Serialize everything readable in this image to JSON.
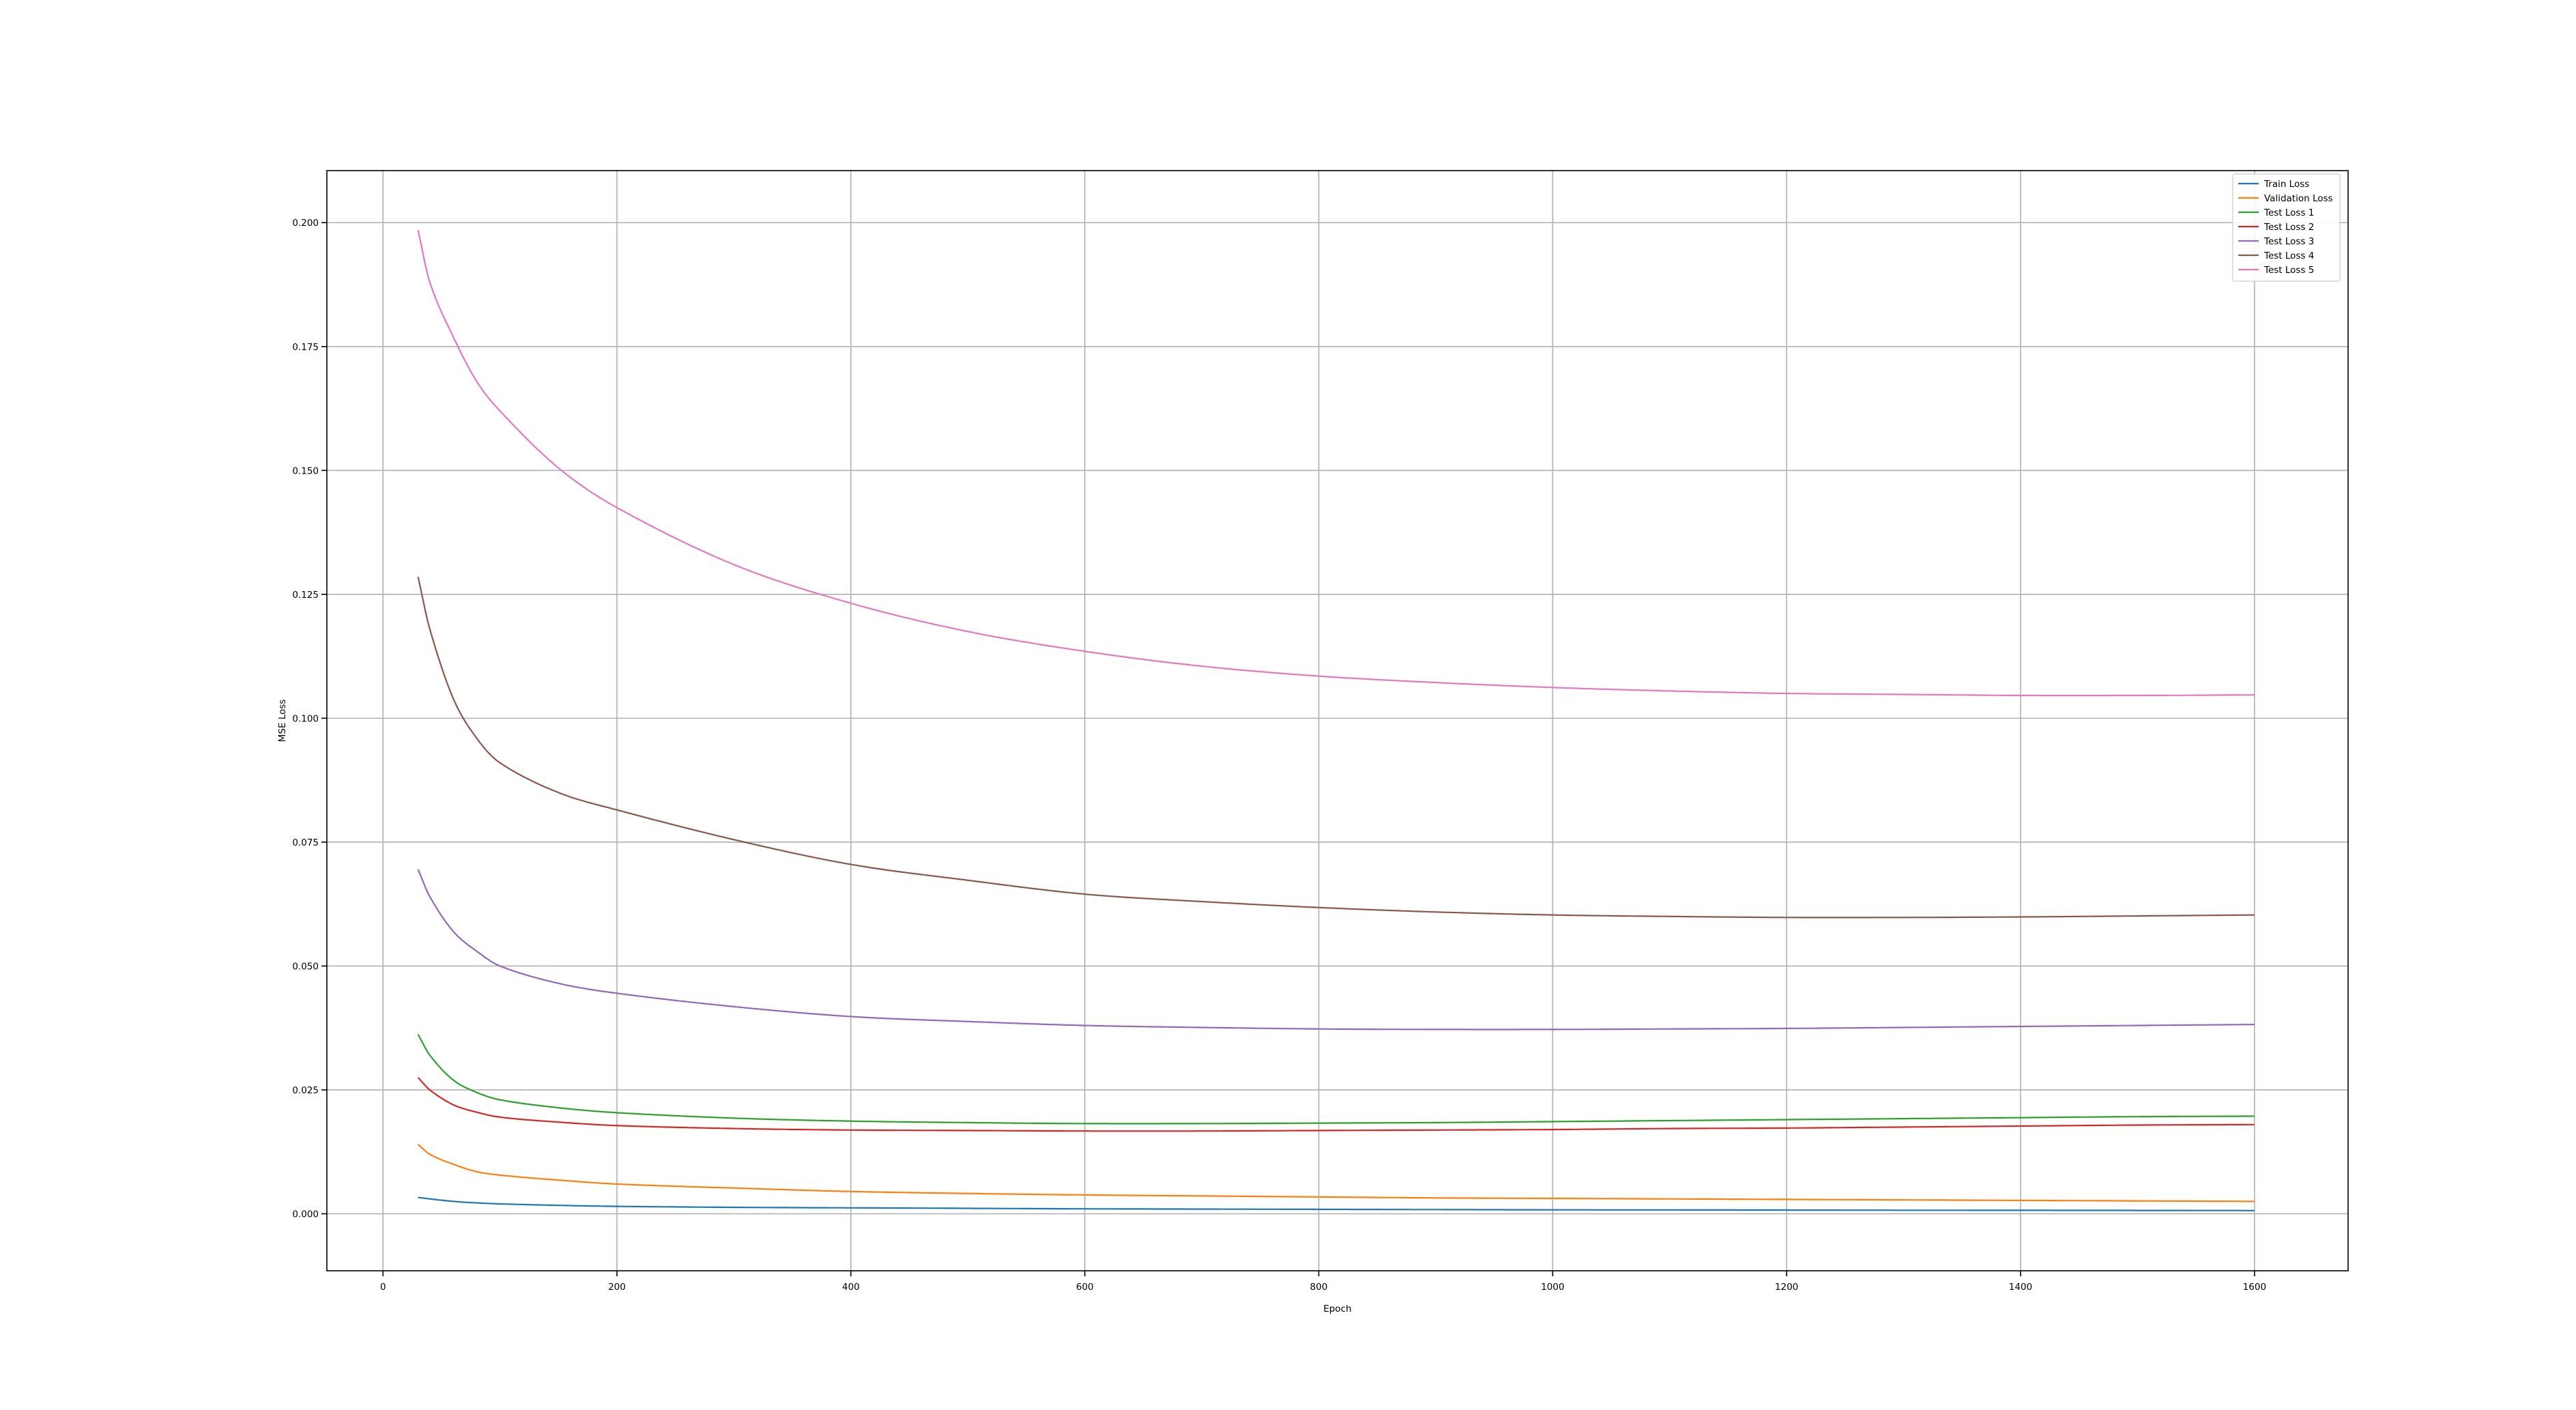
{
  "chart_data": {
    "type": "line",
    "title": "",
    "xlabel": "Epoch",
    "ylabel": "MSE Loss",
    "xlim": [
      -48,
      1680
    ],
    "ylim": [
      -0.0115,
      0.2105
    ],
    "xticks": [
      0,
      200,
      400,
      600,
      800,
      1000,
      1200,
      1400,
      1600
    ],
    "xtick_labels": [
      "0",
      "200",
      "400",
      "600",
      "800",
      "1000",
      "1200",
      "1400",
      "1600"
    ],
    "yticks": [
      0.0,
      0.025,
      0.05,
      0.075,
      0.1,
      0.125,
      0.15,
      0.175,
      0.2
    ],
    "ytick_labels": [
      "0.000",
      "0.025",
      "0.050",
      "0.075",
      "0.100",
      "0.125",
      "0.150",
      "0.175",
      "0.200"
    ],
    "grid": true,
    "legend_position": "top-right",
    "x": [
      30,
      40,
      60,
      80,
      100,
      150,
      200,
      300,
      400,
      500,
      600,
      700,
      800,
      900,
      1000,
      1100,
      1200,
      1300,
      1400,
      1500,
      1600
    ],
    "series": [
      {
        "name": "Train Loss",
        "color": "#1f77b4",
        "values": [
          0.0033,
          0.003,
          0.0025,
          0.0022,
          0.002,
          0.0017,
          0.0015,
          0.0013,
          0.0012,
          0.0011,
          0.001,
          0.00095,
          0.0009,
          0.00085,
          0.0008,
          0.00078,
          0.00075,
          0.00072,
          0.0007,
          0.00068,
          0.00065
        ]
      },
      {
        "name": "Validation Loss",
        "color": "#ff7f0e",
        "values": [
          0.014,
          0.012,
          0.01,
          0.0085,
          0.0078,
          0.0068,
          0.006,
          0.0052,
          0.0045,
          0.0041,
          0.0038,
          0.0036,
          0.0034,
          0.0032,
          0.0031,
          0.003,
          0.0029,
          0.0028,
          0.0027,
          0.0026,
          0.0025
        ]
      },
      {
        "name": "Test Loss 1",
        "color": "#2ca02c",
        "values": [
          0.0362,
          0.032,
          0.027,
          0.0245,
          0.023,
          0.0214,
          0.0204,
          0.0193,
          0.0187,
          0.0184,
          0.0182,
          0.0182,
          0.0183,
          0.0184,
          0.0186,
          0.0188,
          0.019,
          0.0192,
          0.0194,
          0.0196,
          0.0197
        ]
      },
      {
        "name": "Test Loss 2",
        "color": "#d62728",
        "values": [
          0.0275,
          0.025,
          0.022,
          0.0205,
          0.0195,
          0.0185,
          0.0178,
          0.0172,
          0.0169,
          0.0168,
          0.0167,
          0.0167,
          0.0168,
          0.0169,
          0.017,
          0.0172,
          0.0173,
          0.0175,
          0.0177,
          0.0179,
          0.018
        ]
      },
      {
        "name": "Test Loss 3",
        "color": "#9467bd",
        "values": [
          0.0695,
          0.064,
          0.057,
          0.053,
          0.05,
          0.0465,
          0.0445,
          0.0418,
          0.0398,
          0.0388,
          0.038,
          0.0376,
          0.0373,
          0.0372,
          0.0372,
          0.0373,
          0.0374,
          0.0376,
          0.0378,
          0.038,
          0.0382
        ]
      },
      {
        "name": "Test Loss 4",
        "color": "#8c564b",
        "values": [
          0.1285,
          0.118,
          0.104,
          0.096,
          0.091,
          0.085,
          0.0815,
          0.0755,
          0.0705,
          0.0673,
          0.0645,
          0.063,
          0.0618,
          0.0609,
          0.0603,
          0.06,
          0.0598,
          0.0598,
          0.0599,
          0.0601,
          0.0603
        ]
      },
      {
        "name": "Test Loss 5",
        "color": "#e377c2",
        "values": [
          0.1985,
          0.188,
          0.177,
          0.168,
          0.162,
          0.1505,
          0.1425,
          0.131,
          0.1232,
          0.1175,
          0.1135,
          0.1105,
          0.1085,
          0.1072,
          0.1062,
          0.1055,
          0.105,
          0.1048,
          0.1046,
          0.1046,
          0.1047
        ]
      }
    ]
  }
}
